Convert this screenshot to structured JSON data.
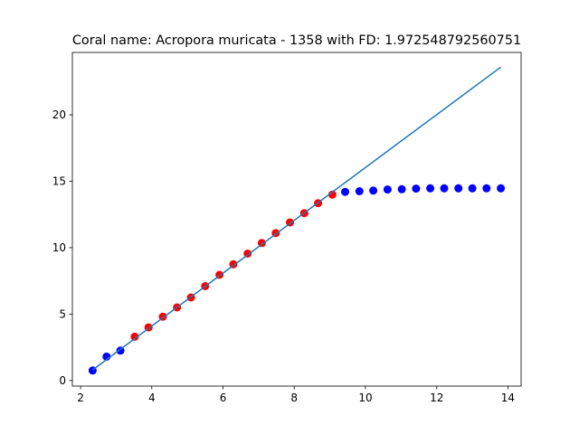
{
  "chart_data": {
    "type": "scatter",
    "title": "Coral name: Acropora muricata - 1358 with FD: 1.972548792560751",
    "xlabel": "",
    "ylabel": "",
    "xlim": [
      1.77,
      14.37
    ],
    "ylim": [
      -0.42,
      24.7
    ],
    "xticks": [
      2,
      4,
      6,
      8,
      10,
      12,
      14
    ],
    "yticks": [
      0,
      5,
      10,
      15,
      20
    ],
    "grid": false,
    "colors": {
      "line": "#1f77b4",
      "blue": "#0000ff",
      "red": "#ff0000",
      "edge": "#000000"
    },
    "series": [
      {
        "type": "scatter",
        "color": "#0000ff",
        "points": [
          [
            2.34,
            0.75
          ],
          [
            2.73,
            1.8
          ],
          [
            3.12,
            2.25
          ],
          [
            9.43,
            14.2
          ],
          [
            9.83,
            14.25
          ],
          [
            10.22,
            14.3
          ],
          [
            10.62,
            14.38
          ],
          [
            11.02,
            14.4
          ],
          [
            11.42,
            14.45
          ],
          [
            11.82,
            14.47
          ],
          [
            12.21,
            14.47
          ],
          [
            12.61,
            14.47
          ],
          [
            13.0,
            14.47
          ],
          [
            13.4,
            14.47
          ],
          [
            13.8,
            14.47
          ]
        ]
      },
      {
        "type": "scatter",
        "color": "#ff0000",
        "points": [
          [
            3.52,
            3.3
          ],
          [
            3.91,
            4.0
          ],
          [
            4.31,
            4.8
          ],
          [
            4.71,
            5.5
          ],
          [
            5.1,
            6.25
          ],
          [
            5.5,
            7.1
          ],
          [
            5.9,
            7.95
          ],
          [
            6.29,
            8.75
          ],
          [
            6.69,
            9.55
          ],
          [
            7.09,
            10.35
          ],
          [
            7.48,
            11.1
          ],
          [
            7.88,
            11.9
          ],
          [
            8.28,
            12.6
          ],
          [
            8.67,
            13.35
          ],
          [
            9.07,
            14.0
          ]
        ]
      },
      {
        "type": "line",
        "color": "#1f77b4",
        "points": [
          [
            2.34,
            0.8
          ],
          [
            13.8,
            23.6
          ]
        ]
      }
    ]
  }
}
